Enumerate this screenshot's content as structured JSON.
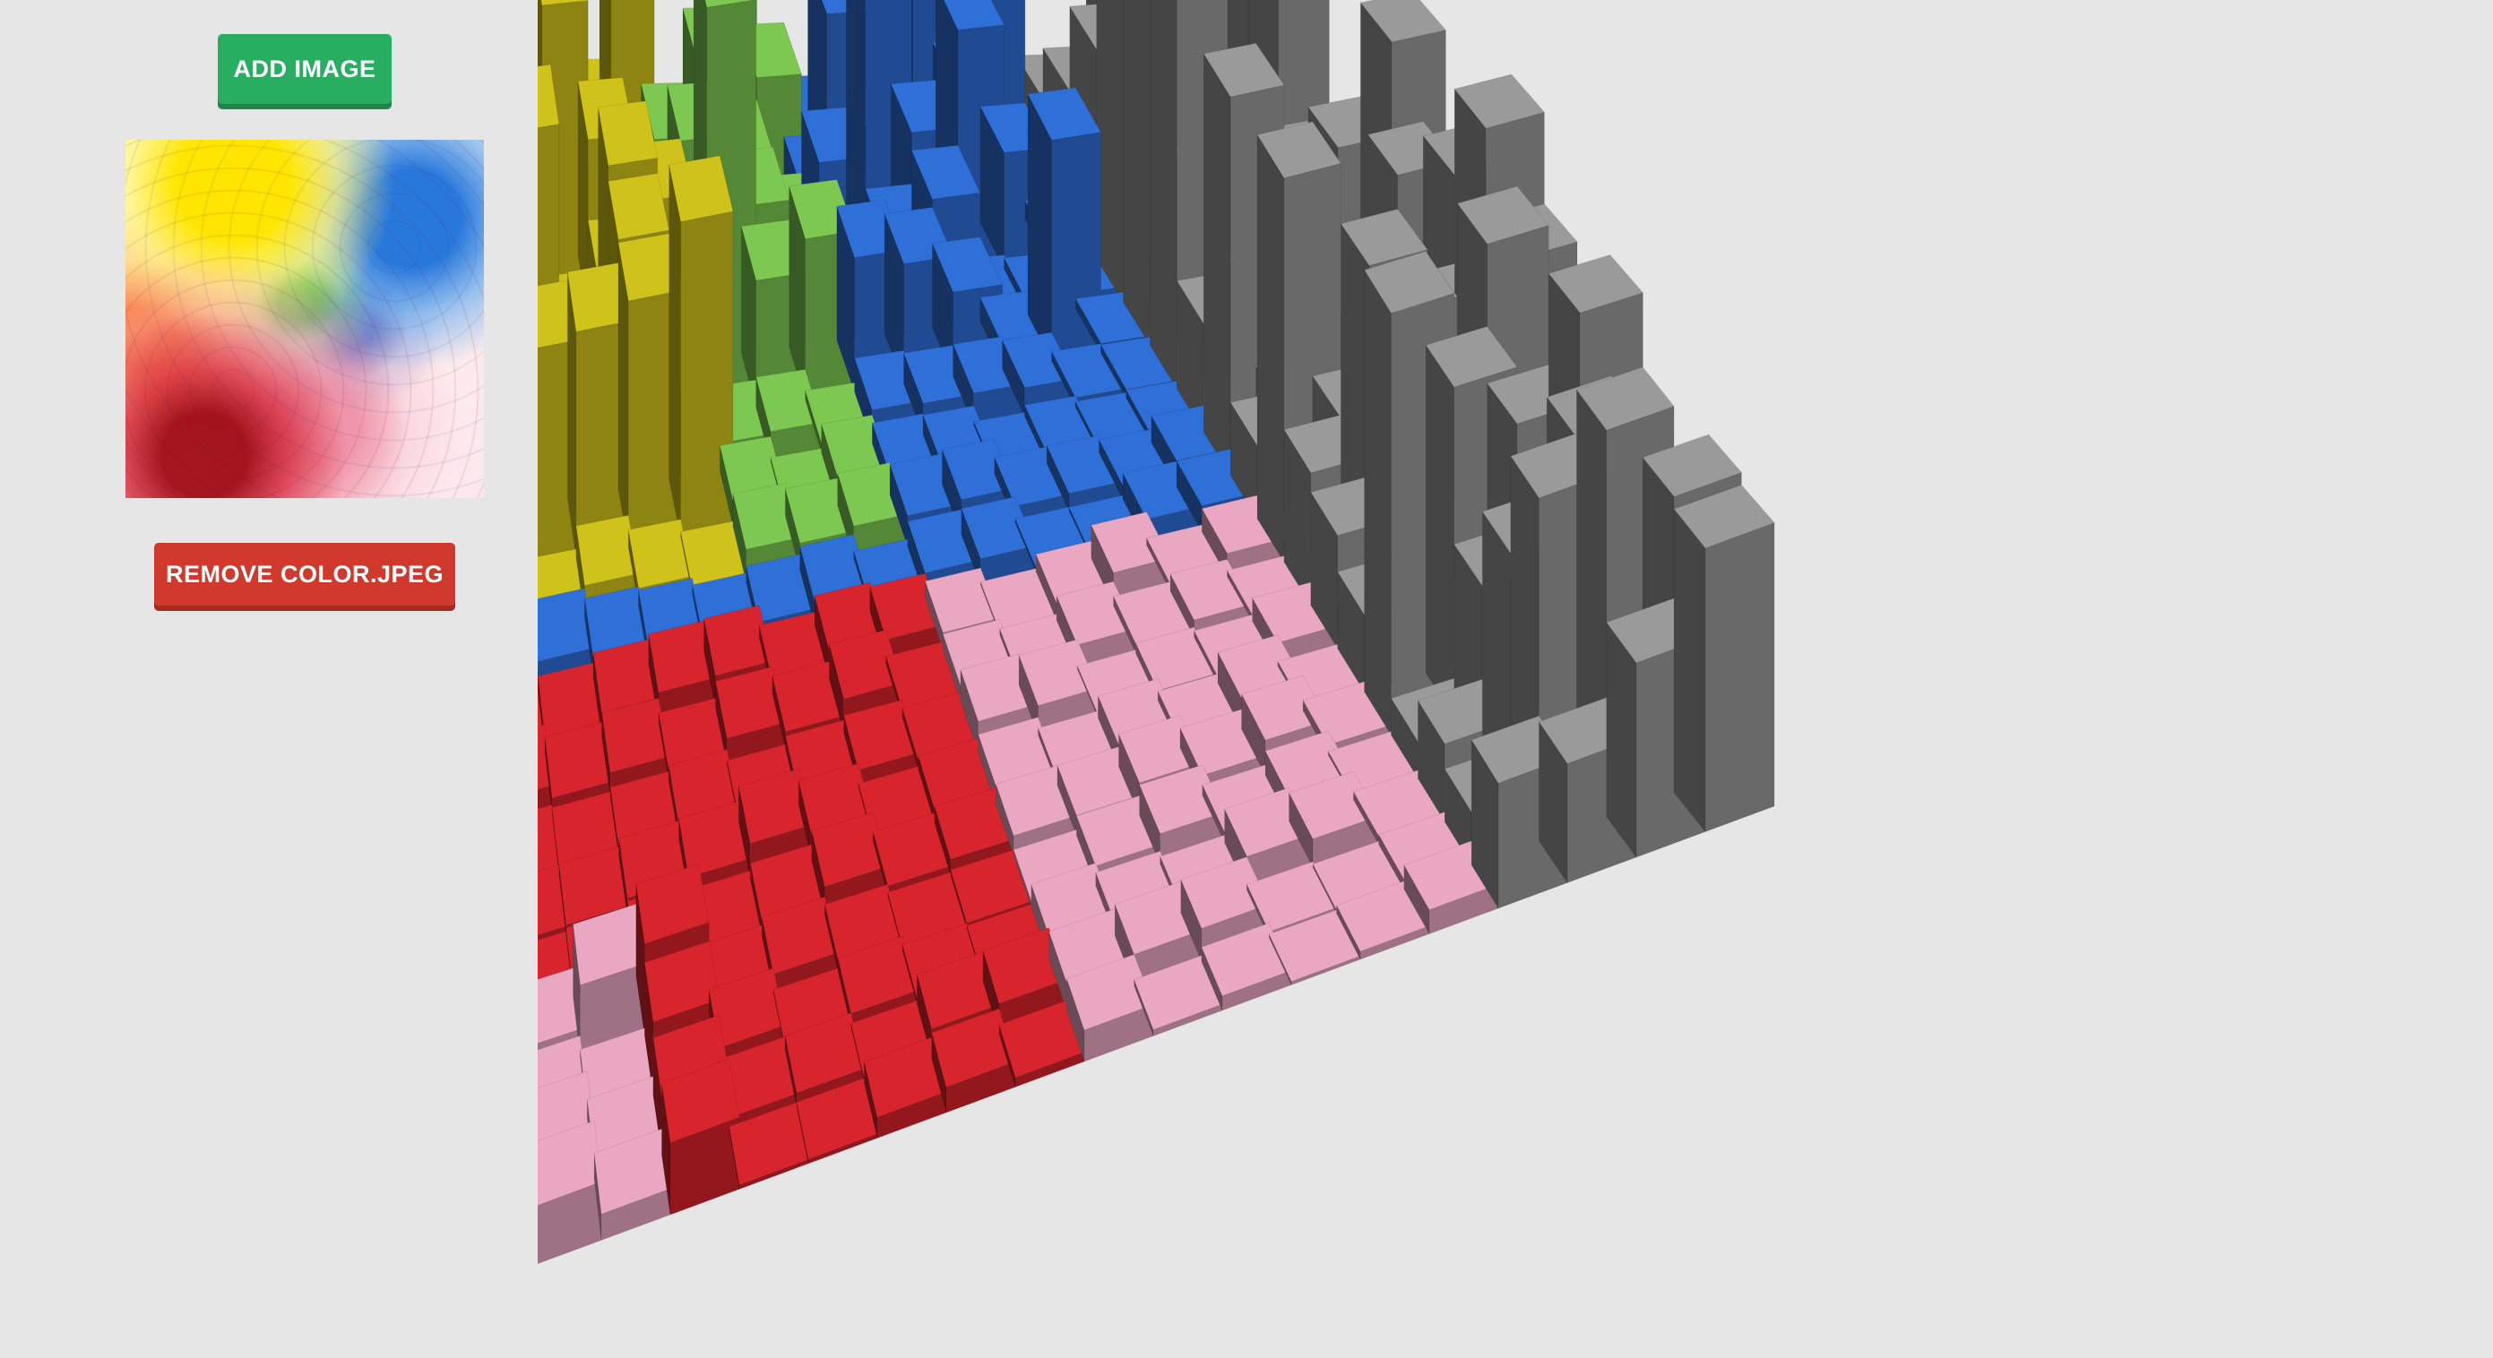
{
  "controls": {
    "add_image_label": "ADD IMAGE",
    "remove_image_label": "REMOVE COLOR.JPEG"
  },
  "thumbnail": {
    "alt": "color.jpeg"
  },
  "scene": {
    "icon": "voxel-terrain-icon",
    "grid_cols": 20,
    "grid_rows": 18,
    "colors": {
      "yellow": "#cfc21a",
      "green": "#7cc850",
      "blue": "#2f6fd8",
      "red": "#d8242c",
      "pink": "#e9a7c2",
      "gray": "#9a9a9a"
    }
  }
}
